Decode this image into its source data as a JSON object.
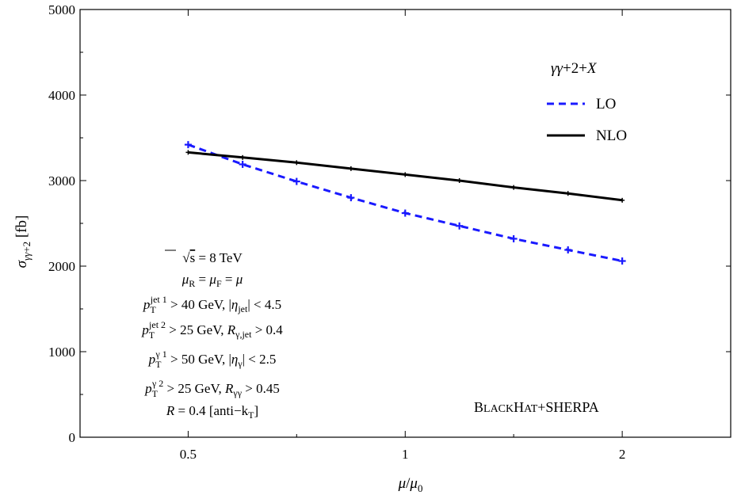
{
  "chart_data": {
    "type": "line",
    "x_scale": "log",
    "xlim": [
      0.354,
      2.828
    ],
    "ylim": [
      0,
      5000
    ],
    "xticks": [
      0.5,
      1,
      2
    ],
    "xtick_labels": [
      "0.5",
      "1",
      "2"
    ],
    "yticks": [
      0,
      1000,
      2000,
      3000,
      4000,
      5000
    ],
    "ytick_labels": [
      "0",
      "1000",
      "2000",
      "3000",
      "4000",
      "5000"
    ],
    "ylabel": "σγγ+2 [fb]",
    "xlabel": "μ/μ0",
    "legend": {
      "title": "γγ+2+X",
      "placement": "top-right",
      "entries": [
        "LO",
        "NLO"
      ]
    },
    "series": [
      {
        "name": "LO",
        "color": "#1a1aff",
        "style": "dashed",
        "x": [
          0.5,
          0.595,
          0.707,
          0.841,
          1.0,
          1.189,
          1.414,
          1.682,
          2.0
        ],
        "y": [
          3420,
          3190,
          2990,
          2800,
          2620,
          2470,
          2320,
          2190,
          2060
        ]
      },
      {
        "name": "NLO",
        "color": "#000000",
        "style": "solid",
        "x": [
          0.5,
          0.595,
          0.707,
          0.841,
          1.0,
          1.189,
          1.414,
          1.682,
          2.0
        ],
        "y": [
          3330,
          3270,
          3210,
          3140,
          3070,
          3000,
          2920,
          2850,
          2770
        ]
      }
    ],
    "annotations": {
      "cuts": [
        "√s = 8 TeV",
        "μR = μF = μ",
        "pT jet 1 > 40 GeV, |ηjet| < 4.5",
        "pT jet 2 > 25 GeV, Rγ,jet > 0.4",
        "pT γ 1 > 50 GeV, |ηγ| < 2.5",
        "pT γ 2 > 25 GeV, Rγγ > 0.45",
        "R = 0.4 [anti−kT]"
      ],
      "program": "BLACKHAT+SHERPA"
    }
  }
}
